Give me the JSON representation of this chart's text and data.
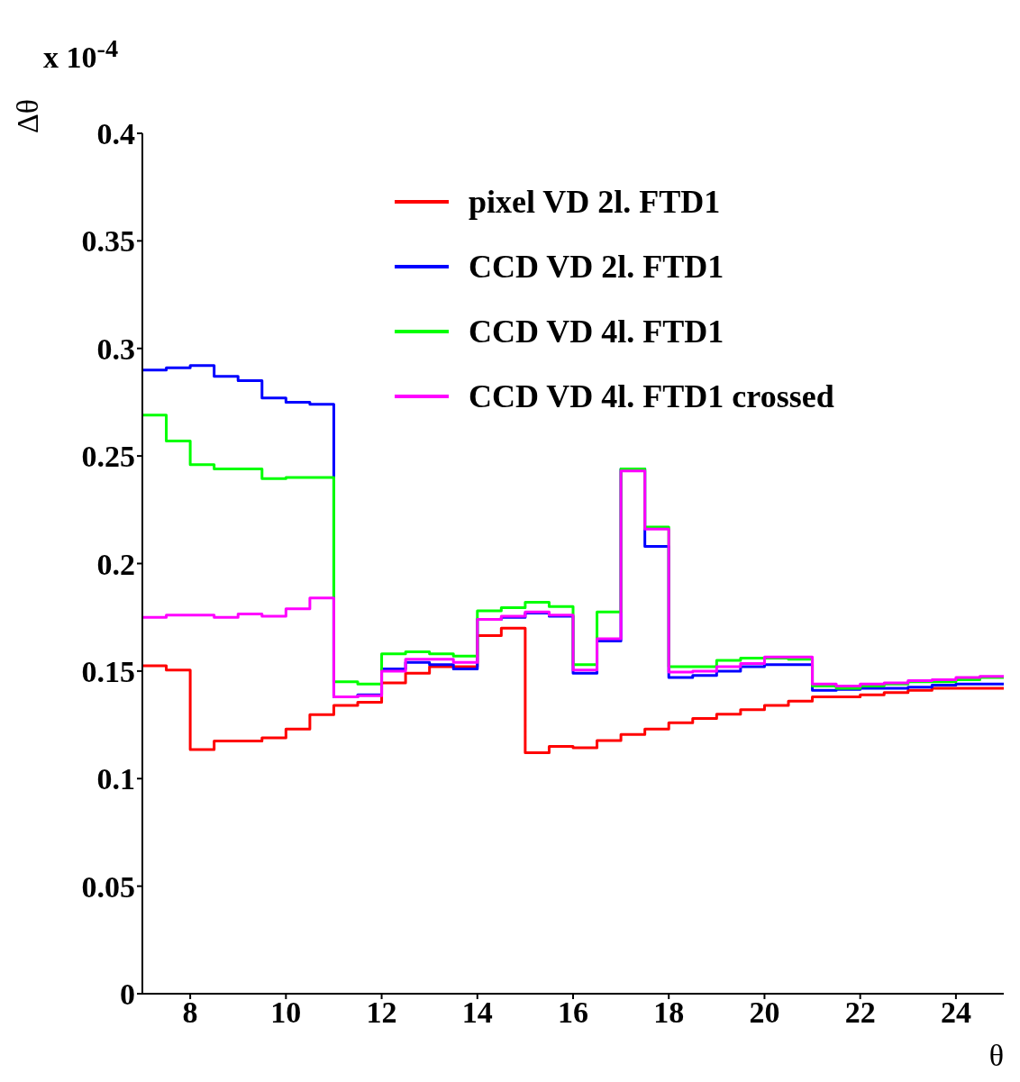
{
  "chart_data": {
    "type": "histogram",
    "xlabel": "θ",
    "ylabel": "Δθ",
    "annotations": [
      "x 10$^{-4}$"
    ],
    "bins": [
      7,
      7.5,
      8,
      8.5,
      9,
      9.5,
      10,
      10.5,
      11,
      11.5,
      12,
      12.5,
      13,
      13.5,
      14,
      14.5,
      15,
      15.5,
      16,
      16.5,
      17,
      17.5,
      18,
      18.5,
      19,
      19.5,
      20,
      20.5,
      21,
      21.5,
      22,
      22.5,
      23,
      23.5,
      24,
      24.5,
      25
    ],
    "series": [
      {
        "name": "pixel VD 2l. FTD1",
        "color": "#ff0000",
        "values": [
          0.1525,
          0.1505,
          0.1135,
          0.1175,
          0.1175,
          0.119,
          0.123,
          0.1297,
          0.134,
          0.1355,
          0.1445,
          0.149,
          0.152,
          0.152,
          0.1665,
          0.17,
          0.112,
          0.115,
          0.1143,
          0.1177,
          0.1205,
          0.123,
          0.126,
          0.128,
          0.13,
          0.132,
          0.134,
          0.136,
          0.138,
          0.138,
          0.139,
          0.14,
          0.141,
          0.142,
          0.142,
          0.142
        ]
      },
      {
        "name": "CCD VD 2l. FTD1",
        "color": "#0000ff",
        "values": [
          0.29,
          0.291,
          0.292,
          0.287,
          0.285,
          0.277,
          0.275,
          0.274,
          0.138,
          0.139,
          0.151,
          0.154,
          0.153,
          0.151,
          0.174,
          0.175,
          0.177,
          0.1755,
          0.149,
          0.164,
          0.244,
          0.208,
          0.147,
          0.148,
          0.15,
          0.152,
          0.153,
          0.153,
          0.141,
          0.1415,
          0.142,
          0.142,
          0.1425,
          0.1435,
          0.144,
          0.144
        ]
      },
      {
        "name": "CCD VD 4l. FTD1",
        "color": "#00ff00",
        "values": [
          0.269,
          0.257,
          0.246,
          0.244,
          0.244,
          0.2395,
          0.24,
          0.24,
          0.145,
          0.144,
          0.158,
          0.159,
          0.158,
          0.157,
          0.178,
          0.1795,
          0.182,
          0.18,
          0.153,
          0.1775,
          0.244,
          0.217,
          0.152,
          0.152,
          0.155,
          0.156,
          0.156,
          0.1555,
          0.143,
          0.142,
          0.143,
          0.144,
          0.145,
          0.145,
          0.146,
          0.147
        ]
      },
      {
        "name": "CCD VD 4l. FTD1 crossed",
        "color": "#ff00ff",
        "values": [
          0.175,
          0.176,
          0.176,
          0.175,
          0.1765,
          0.1755,
          0.179,
          0.184,
          0.138,
          0.1385,
          0.15,
          0.1555,
          0.1555,
          0.154,
          0.174,
          0.1755,
          0.1775,
          0.176,
          0.1505,
          0.165,
          0.243,
          0.216,
          0.1495,
          0.15,
          0.152,
          0.1535,
          0.1565,
          0.1565,
          0.144,
          0.143,
          0.144,
          0.1445,
          0.1455,
          0.146,
          0.147,
          0.1475
        ]
      }
    ],
    "xlim": [
      7,
      25
    ],
    "xticks": [
      8,
      10,
      12,
      14,
      16,
      18,
      20,
      22,
      24
    ],
    "ylim": [
      0,
      0.4
    ],
    "yticks": [
      0,
      0.05,
      0.1,
      0.15,
      0.2,
      0.25,
      0.3,
      0.35,
      0.4
    ],
    "legend": "top right"
  }
}
